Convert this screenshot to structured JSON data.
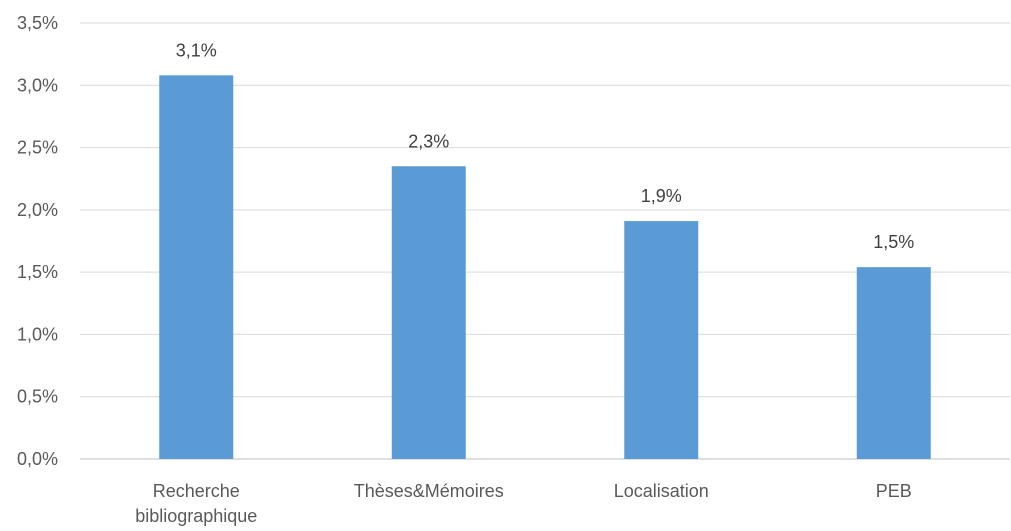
{
  "chart_data": {
    "type": "bar",
    "categories": [
      [
        "Recherche",
        "bibliographique"
      ],
      [
        "Thèses&Mémoires"
      ],
      [
        "Localisation"
      ],
      [
        "PEB"
      ]
    ],
    "values": [
      3.08,
      2.35,
      1.91,
      1.54
    ],
    "data_labels": [
      "3,1%",
      "2,3%",
      "1,9%",
      "1,5%"
    ],
    "y_ticks": [
      {
        "value": 0.0,
        "label": "0,0%"
      },
      {
        "value": 0.5,
        "label": "0,5%"
      },
      {
        "value": 1.0,
        "label": "1,0%"
      },
      {
        "value": 1.5,
        "label": "1,5%"
      },
      {
        "value": 2.0,
        "label": "2,0%"
      },
      {
        "value": 2.5,
        "label": "2,5%"
      },
      {
        "value": 3.0,
        "label": "3,0%"
      },
      {
        "value": 3.5,
        "label": "3,5%"
      }
    ],
    "ylim": [
      0,
      3.5
    ],
    "grid": true,
    "legend": "none",
    "title": "",
    "xlabel": "",
    "ylabel": "",
    "colors": {
      "bar": "#5b9bd5",
      "grid": "#d9d9d9",
      "axis": "#bfbfbf"
    }
  }
}
